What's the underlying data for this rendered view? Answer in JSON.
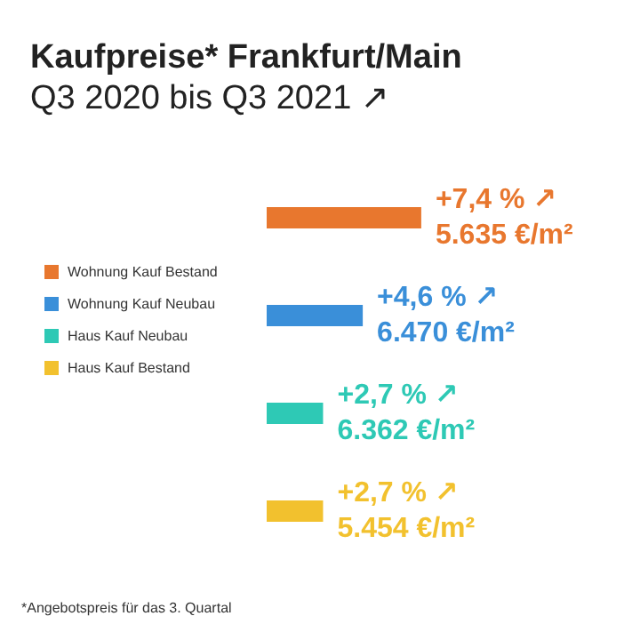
{
  "chart_data": {
    "type": "bar",
    "orientation": "horizontal",
    "stacked": true,
    "title": "Kaufpreise* Frankfurt/Main",
    "subtitle": "Q3 2020 bis Q3 2021 ↗",
    "categories": [
      null,
      null,
      null,
      null
    ],
    "series": [
      {
        "name": "Wohnung Kauf Bestand",
        "color": "#e8772e",
        "values": [
          7.4,
          null,
          null,
          null
        ],
        "value_labels": [
          "+7,4 % ↗\n5.635 €/m²",
          null,
          null,
          null
        ]
      },
      {
        "name": "Wohnung Kauf Neubau",
        "color": "#3a8fd9",
        "values": [
          null,
          4.6,
          null,
          null
        ],
        "value_labels": [
          null,
          "+4,6 % ↗\n6.470 €/m²",
          null,
          null
        ]
      },
      {
        "name": "Haus Kauf Neubau",
        "color": "#2ec9b5",
        "values": [
          null,
          null,
          2.7,
          null
        ],
        "value_labels": [
          null,
          null,
          "+2,7 % ↗\n6.362 €/m²",
          null
        ]
      },
      {
        "name": "Haus Kauf Bestand",
        "color": "#f2c12e",
        "values": [
          null,
          null,
          null,
          2.7
        ],
        "value_labels": [
          null,
          null,
          null,
          "+2,7 % ↗\n5.454 €/m²"
        ]
      }
    ],
    "legend": "left",
    "annotations": [
      "*Angebotspreis für das 3. Quartal"
    ]
  }
}
